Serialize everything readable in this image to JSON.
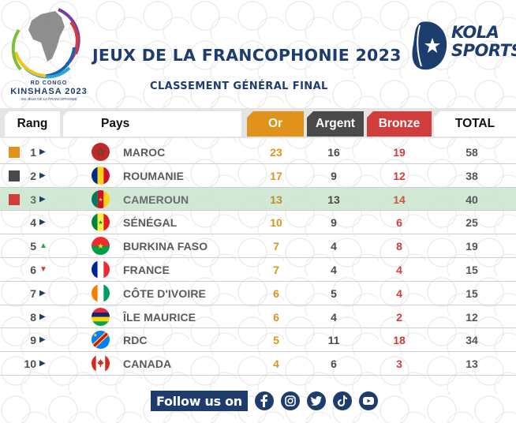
{
  "header": {
    "title": "JEUX DE LA FRANCOPHONIE 2023",
    "subtitle": "CLASSEMENT GÉNÉRAL FINAL",
    "left_logo": {
      "line1": "RD CONGO",
      "line2": "KINSHASA 2023",
      "line3": "IXe JEUX DE LA FRANCOPHONIE"
    },
    "right_logo": {
      "line1": "KOLA",
      "line2": "SPORTS"
    }
  },
  "columns": {
    "rang": "Rang",
    "pays": "Pays",
    "or": "Or",
    "argent": "Argent",
    "bronze": "Bronze",
    "total": "TOTAL"
  },
  "colors": {
    "navy": "#1d3d6e",
    "gold": "#e0921a",
    "silver": "#4a4a4c",
    "bronze": "#d13d3a",
    "highlight": "#c8e4cd",
    "trend_up": "#2e9e3e",
    "trend_down": "#d13d3a"
  },
  "rows": [
    {
      "rank": "1",
      "trend": "same",
      "medal": "gold",
      "flag": "morocco",
      "country": "MAROC",
      "or": "23",
      "argent": "16",
      "bronze": "19",
      "total": "58"
    },
    {
      "rank": "2",
      "trend": "same",
      "medal": "silver",
      "flag": "romania",
      "country": "ROUMANIE",
      "or": "17",
      "argent": "9",
      "bronze": "12",
      "total": "38"
    },
    {
      "rank": "3",
      "trend": "same",
      "medal": "bronze",
      "flag": "cameroon",
      "country": "CAMEROUN",
      "or": "13",
      "argent": "13",
      "bronze": "14",
      "total": "40",
      "highlight": true
    },
    {
      "rank": "4",
      "trend": "same",
      "flag": "senegal",
      "country": "SÉNÉGAL",
      "or": "10",
      "argent": "9",
      "bronze": "6",
      "total": "25"
    },
    {
      "rank": "5",
      "trend": "up",
      "flag": "burkina-faso",
      "country": "BURKINA FASO",
      "or": "7",
      "argent": "4",
      "bronze": "8",
      "total": "19"
    },
    {
      "rank": "6",
      "trend": "down",
      "flag": "france",
      "country": "FRANCE",
      "or": "7",
      "argent": "4",
      "bronze": "4",
      "total": "15"
    },
    {
      "rank": "7",
      "trend": "same",
      "flag": "cote-divoire",
      "country": "CÔTE D'IVOIRE",
      "or": "6",
      "argent": "5",
      "bronze": "4",
      "total": "15"
    },
    {
      "rank": "8",
      "trend": "same",
      "flag": "mauritius",
      "country": "ÎLE MAURICE",
      "or": "6",
      "argent": "4",
      "bronze": "2",
      "total": "12"
    },
    {
      "rank": "9",
      "trend": "same",
      "flag": "drc",
      "country": "RDC",
      "or": "5",
      "argent": "11",
      "bronze": "18",
      "total": "34"
    },
    {
      "rank": "10",
      "trend": "same",
      "flag": "canada",
      "country": "CANADA",
      "or": "4",
      "argent": "6",
      "bronze": "3",
      "total": "13"
    }
  ],
  "footer": {
    "follow_label": "Follow us on",
    "socials": [
      "facebook-icon",
      "instagram-icon",
      "twitter-icon",
      "tiktok-icon",
      "youtube-icon"
    ]
  }
}
